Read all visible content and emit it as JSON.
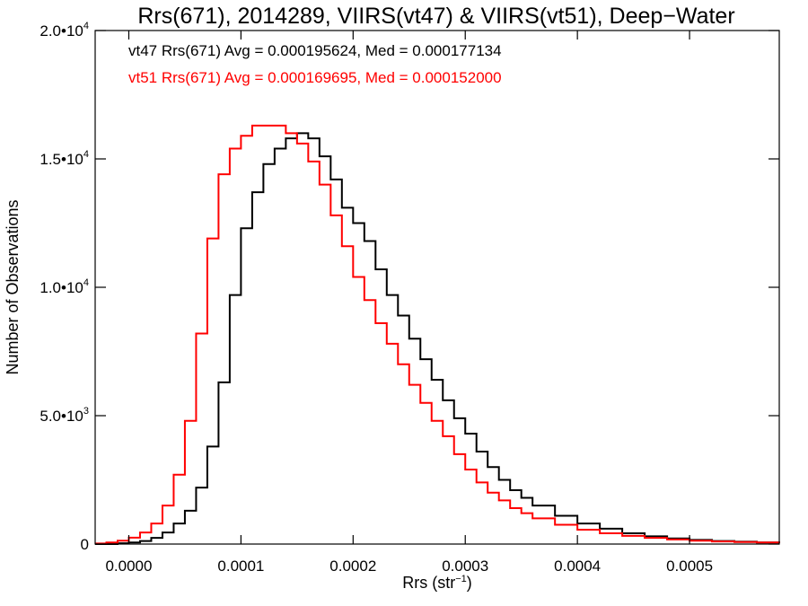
{
  "chart_data": {
    "type": "line",
    "title": "Rrs(671), 2014289, VIIRS(vt47) & VIIRS(vt51), Deep−Water",
    "xlabel": {
      "base": "Rrs (str",
      "sup": "−1",
      "close": ")"
    },
    "ylabel": "Number of Observations",
    "xlim": [
      -3e-05,
      0.00058
    ],
    "ylim": [
      0,
      20000
    ],
    "grid": false,
    "legend": "top-left",
    "x_ticks": [
      {
        "value": 0.0,
        "label": "0.0000"
      },
      {
        "value": 0.0001,
        "label": "0.0001"
      },
      {
        "value": 0.0002,
        "label": "0.0002"
      },
      {
        "value": 0.0003,
        "label": "0.0003"
      },
      {
        "value": 0.0004,
        "label": "0.0004"
      },
      {
        "value": 0.0005,
        "label": "0.0005"
      }
    ],
    "y_ticks": [
      {
        "value": 0,
        "label": "0",
        "sup": ""
      },
      {
        "value": 5000,
        "label": "5.0•10",
        "sup": "3"
      },
      {
        "value": 10000,
        "label": "1.0•10",
        "sup": "4"
      },
      {
        "value": 15000,
        "label": "1.5•10",
        "sup": "4"
      },
      {
        "value": 20000,
        "label": "2.0•10",
        "sup": "4"
      }
    ],
    "series": [
      {
        "name": "vt47",
        "label": "vt47 Rrs(671) Avg = 0.000195624, Med = 0.000177134",
        "color": "#000000",
        "x": [
          -3e-05,
          -2e-05,
          -1e-05,
          0.0,
          1e-05,
          2e-05,
          3e-05,
          4e-05,
          5e-05,
          6e-05,
          7e-05,
          8e-05,
          9e-05,
          0.0001,
          0.00011,
          0.00012,
          0.00013,
          0.00014,
          0.00015,
          0.00016,
          0.00017,
          0.00018,
          0.00019,
          0.0002,
          0.00021,
          0.00022,
          0.00023,
          0.00024,
          0.00025,
          0.00026,
          0.00027,
          0.00028,
          0.00029,
          0.0003,
          0.00031,
          0.00032,
          0.00033,
          0.00034,
          0.00035,
          0.00036,
          0.00038,
          0.0004,
          0.00042,
          0.00044,
          0.00046,
          0.00048,
          0.0005,
          0.00052,
          0.00054,
          0.00056,
          0.00058
        ],
        "y": [
          0,
          0,
          30,
          60,
          120,
          240,
          450,
          800,
          1300,
          2200,
          3800,
          6300,
          9700,
          12300,
          13700,
          14800,
          15400,
          15800,
          16000,
          15800,
          15100,
          14200,
          13100,
          12500,
          11800,
          10700,
          9700,
          8900,
          8000,
          7200,
          6400,
          5600,
          4900,
          4300,
          3600,
          3000,
          2500,
          2100,
          1800,
          1500,
          1100,
          800,
          600,
          420,
          300,
          220,
          160,
          120,
          90,
          60,
          40
        ]
      },
      {
        "name": "vt51",
        "label": "vt51 Rrs(671) Avg = 0.000169695, Med = 0.000152000",
        "color": "#ff0000",
        "x": [
          -3e-05,
          -2e-05,
          -1e-05,
          0.0,
          1e-05,
          2e-05,
          3e-05,
          4e-05,
          5e-05,
          6e-05,
          7e-05,
          8e-05,
          9e-05,
          0.0001,
          0.00011,
          0.00012,
          0.00013,
          0.00014,
          0.00015,
          0.00016,
          0.00017,
          0.00018,
          0.00019,
          0.0002,
          0.00021,
          0.00022,
          0.00023,
          0.00024,
          0.00025,
          0.00026,
          0.00027,
          0.00028,
          0.00029,
          0.0003,
          0.00031,
          0.00032,
          0.00033,
          0.00034,
          0.00035,
          0.00036,
          0.00038,
          0.0004,
          0.00042,
          0.00044,
          0.00046,
          0.00048,
          0.0005,
          0.00052,
          0.00054,
          0.00056,
          0.00058
        ],
        "y": [
          20,
          60,
          130,
          250,
          450,
          800,
          1500,
          2700,
          4800,
          8200,
          11900,
          14400,
          15400,
          15900,
          16300,
          16300,
          16300,
          16000,
          15600,
          14900,
          14000,
          12800,
          11600,
          10400,
          9500,
          8600,
          7800,
          7000,
          6200,
          5500,
          4800,
          4200,
          3500,
          2900,
          2400,
          2000,
          1700,
          1400,
          1200,
          1000,
          750,
          560,
          420,
          320,
          240,
          180,
          130,
          100,
          80,
          60,
          40
        ]
      }
    ]
  }
}
